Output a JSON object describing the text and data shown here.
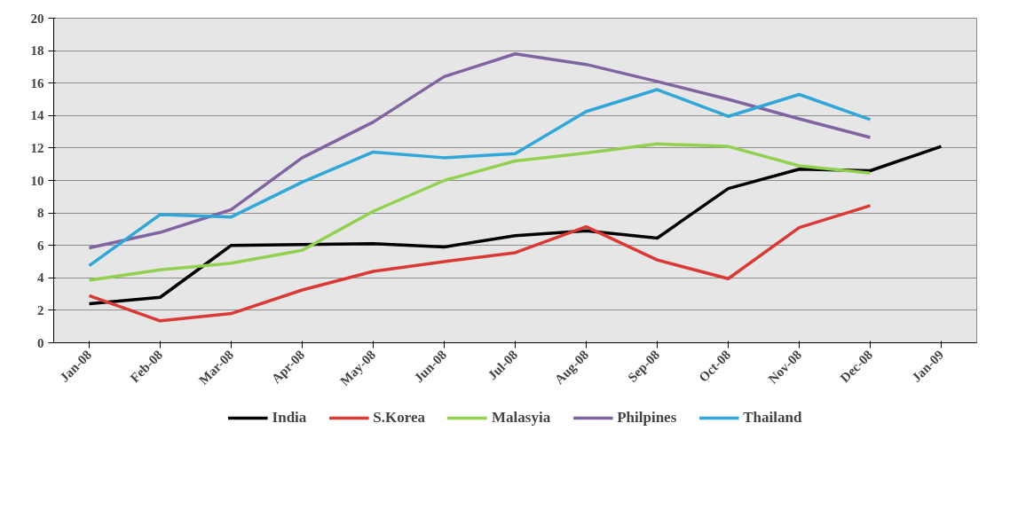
{
  "chart_data": {
    "type": "line",
    "categories": [
      "Jan-08",
      "Feb-08",
      "Mar-08",
      "Apr-08",
      "May-08",
      "Jun-08",
      "Jul-08",
      "Aug-08",
      "Sep-08",
      "Oct-08",
      "Nov-08",
      "Dec-08",
      "Jan-09"
    ],
    "ylim": [
      0,
      20
    ],
    "yticks": [
      0,
      2,
      4,
      6,
      8,
      10,
      12,
      14,
      16,
      18,
      20
    ],
    "grid": "y",
    "legend": "bottom",
    "marker": "none",
    "line_style": "solid",
    "series": [
      {
        "name": "India",
        "color": "#000000",
        "values": [
          2.4,
          2.8,
          6.0,
          6.05,
          6.1,
          5.9,
          6.6,
          6.9,
          6.45,
          9.5,
          10.7,
          10.6,
          12.1
        ]
      },
      {
        "name": "S.Korea",
        "color": "#d93a35",
        "values": [
          2.9,
          1.35,
          1.8,
          3.25,
          4.4,
          5.0,
          5.55,
          7.15,
          5.1,
          3.95,
          7.1,
          8.45,
          null
        ]
      },
      {
        "name": "Malasyia",
        "color": "#92d050",
        "values": [
          3.85,
          4.5,
          4.9,
          5.7,
          8.1,
          10.0,
          11.2,
          11.7,
          12.25,
          12.1,
          10.9,
          10.45,
          null
        ]
      },
      {
        "name": "Philpines",
        "color": "#8064a2",
        "values": [
          5.85,
          6.8,
          8.2,
          11.4,
          13.6,
          16.4,
          17.8,
          17.15,
          16.1,
          15.0,
          13.8,
          12.65,
          null
        ]
      },
      {
        "name": "Thailand",
        "color": "#31a6d8",
        "values": [
          4.75,
          7.9,
          7.75,
          9.9,
          11.75,
          11.4,
          11.65,
          14.25,
          15.6,
          13.95,
          15.3,
          13.75,
          null
        ]
      }
    ]
  }
}
